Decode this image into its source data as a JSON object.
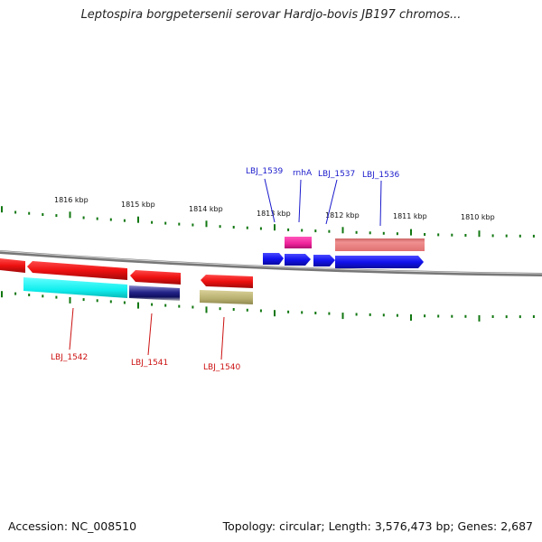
{
  "title": "Leptospira borgpetersenii serovar Hardjo-bovis JB197 chromos...",
  "footer": {
    "accession": "Accession: NC_008510",
    "topology": "Topology: circular; Length: 3,576,473 bp; Genes: 2,687"
  },
  "scale_labels": [
    "1816 kbp",
    "1815 kbp",
    "1814 kbp",
    "1813 kbp",
    "1812 kbp",
    "1811 kbp",
    "1810 kbp"
  ],
  "genes_forward": [
    {
      "name": "LBJ_1539",
      "color": "#1a1aee",
      "labeled": true
    },
    {
      "name": "rnhA",
      "color": "#1a1aee",
      "labeled": true
    },
    {
      "name": "LBJ_1537",
      "color": "#1a1aee",
      "labeled": true
    },
    {
      "name": "LBJ_1536",
      "color": "#1a1aee",
      "labeled": true
    }
  ],
  "genes_reverse": [
    {
      "name": "LBJ_1542",
      "color": "#e01010",
      "labeled": true
    },
    {
      "name": "LBJ_1541",
      "color": "#e01010",
      "labeled": true
    },
    {
      "name": "LBJ_1540",
      "color": "#e01010",
      "labeled": true
    }
  ],
  "feature_colors": {
    "forward_gene": "#1a1aee",
    "reverse_gene": "#e01010",
    "magenta_feature": "#ee2299",
    "salmon_feature": "#ee8888",
    "cyan_feature": "#11eeee",
    "navy_feature": "#222288",
    "olive_feature": "#b8b070",
    "backbone": "#888888",
    "tick": "#117711",
    "forward_label": "#1a1acc",
    "reverse_label": "#cc1111"
  }
}
